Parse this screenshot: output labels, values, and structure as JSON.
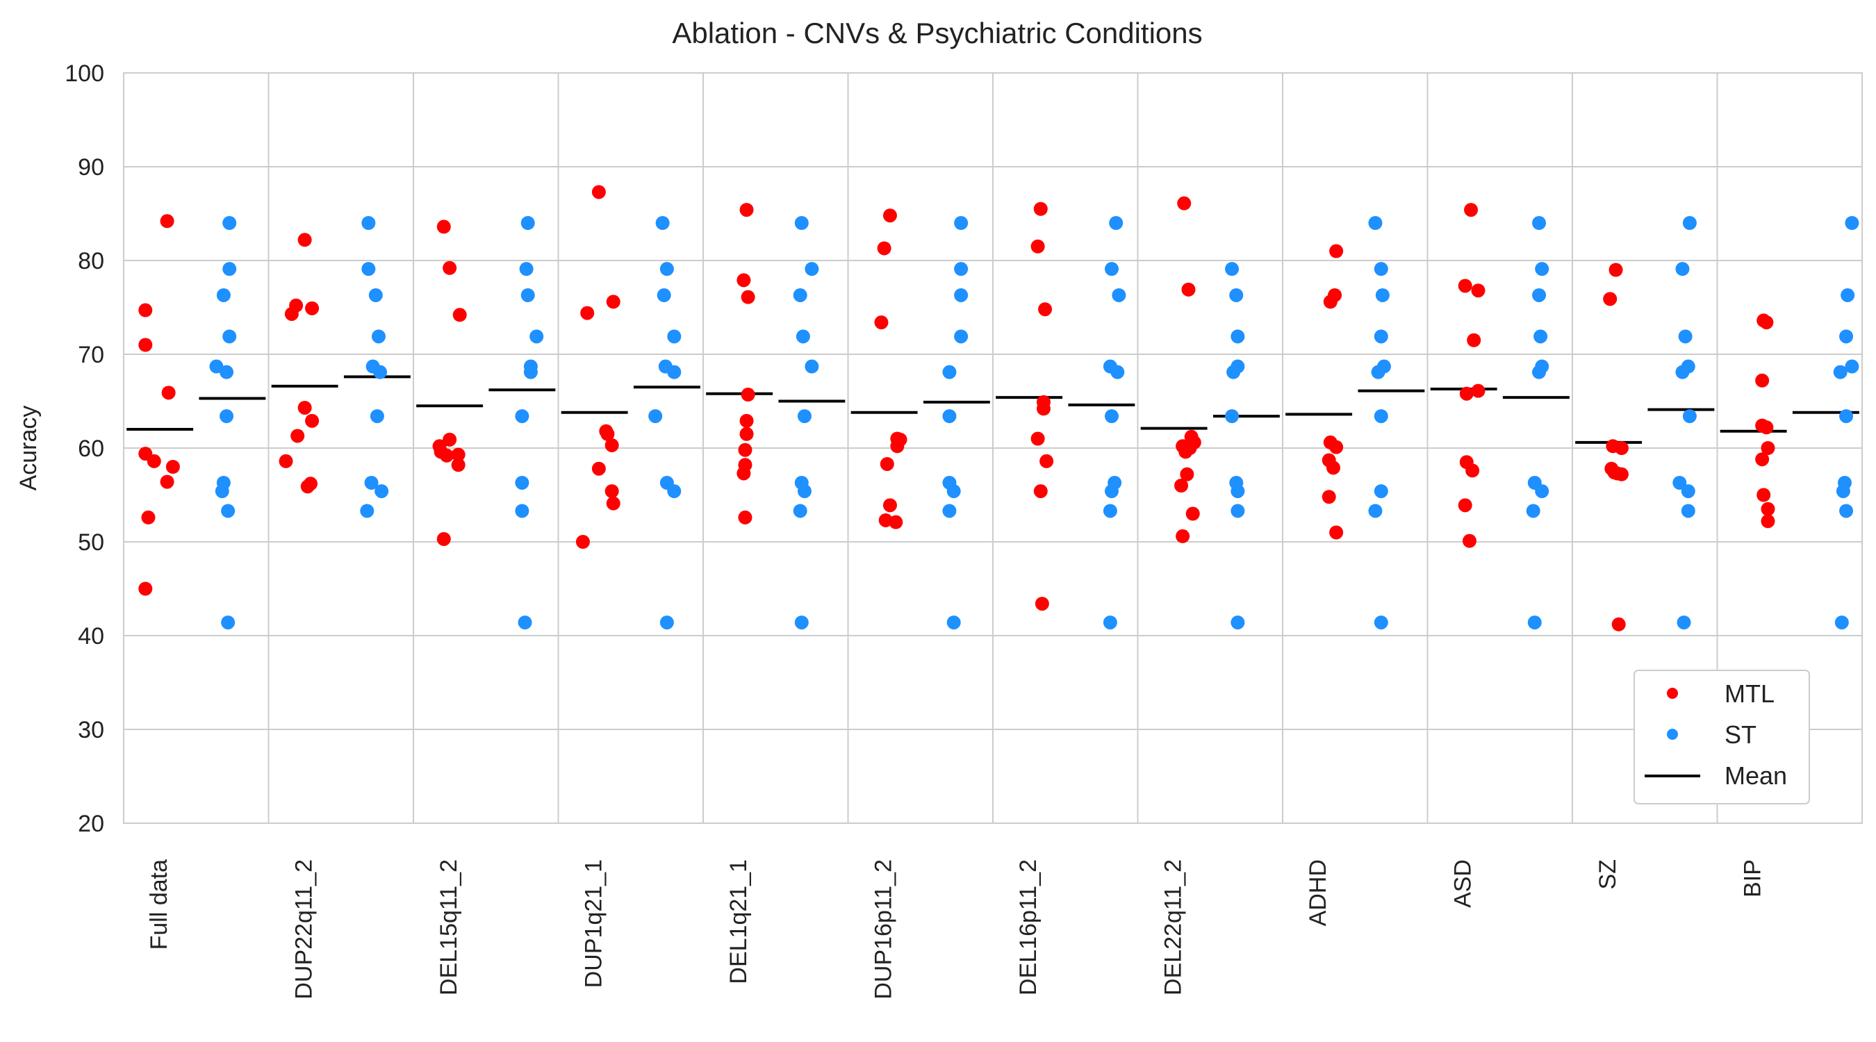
{
  "chart_data": {
    "type": "scatter",
    "title": "Ablation - CNVs & Psychiatric Conditions",
    "xlabel": "",
    "ylabel": "Acuracy",
    "ylim": [
      20,
      100
    ],
    "yticks": [
      20,
      30,
      40,
      50,
      60,
      70,
      80,
      90,
      100
    ],
    "grid": true,
    "legend_position": "bottom-right",
    "legend": [
      {
        "label": "MTL",
        "marker": "dot",
        "color": "#ff0000"
      },
      {
        "label": "ST",
        "marker": "dot",
        "color": "#1e90ff"
      },
      {
        "label": "Mean",
        "marker": "line",
        "color": "#000000"
      }
    ],
    "categories": [
      "Full data",
      "DUP22q11_2",
      "DEL15q11_2",
      "DUP1q21_1",
      "DEL1q21_1",
      "DUP16p11_2",
      "DEL16p11_2",
      "DEL22q11_2",
      "ADHD",
      "ASD",
      "SZ",
      "BIP"
    ],
    "series": [
      {
        "name": "MTL",
        "color": "#ff0000",
        "points": [
          [
            84.2,
            74.7,
            71.0,
            65.9,
            59.4,
            58.6,
            58.0,
            56.4,
            52.6,
            45.0
          ],
          [
            82.2,
            75.2,
            74.9,
            74.3,
            64.3,
            62.9,
            61.3,
            58.6,
            56.2,
            55.9
          ],
          [
            83.6,
            79.2,
            74.2,
            60.9,
            60.2,
            59.6,
            59.3,
            59.2,
            58.2,
            50.3
          ],
          [
            87.3,
            75.6,
            74.4,
            61.8,
            61.5,
            60.3,
            57.8,
            55.4,
            54.1,
            50.0
          ],
          [
            85.4,
            77.9,
            76.1,
            65.7,
            62.9,
            61.5,
            59.8,
            58.2,
            57.3,
            52.6
          ],
          [
            84.8,
            81.3,
            73.4,
            61.0,
            60.9,
            60.2,
            58.3,
            53.9,
            52.3,
            52.1
          ],
          [
            85.5,
            81.5,
            74.8,
            64.9,
            64.2,
            61.0,
            58.6,
            55.4,
            43.4
          ],
          [
            86.1,
            76.9,
            61.2,
            60.6,
            60.2,
            60.0,
            59.6,
            57.2,
            56.0,
            53.0,
            50.6
          ],
          [
            81.0,
            76.3,
            75.6,
            60.6,
            60.1,
            58.7,
            57.9,
            54.8,
            51.0
          ],
          [
            85.4,
            77.3,
            76.8,
            71.5,
            66.1,
            65.8,
            58.5,
            57.6,
            53.9,
            50.1
          ],
          [
            79.0,
            75.9,
            60.2,
            60.0,
            57.8,
            57.4,
            57.2,
            57.3,
            41.2
          ],
          [
            73.6,
            73.4,
            67.2,
            62.4,
            62.2,
            60.0,
            58.8,
            55.0,
            53.5,
            52.2
          ]
        ],
        "xoffsets": [
          [
            0.05,
            -0.1,
            -0.1,
            0.06,
            -0.1,
            -0.04,
            0.09,
            0.05,
            -0.08,
            -0.1
          ],
          [
            0.0,
            -0.06,
            0.05,
            -0.09,
            0.0,
            0.05,
            -0.05,
            -0.13,
            0.04,
            0.02
          ],
          [
            -0.04,
            0.0,
            0.07,
            0.0,
            -0.07,
            -0.06,
            0.06,
            -0.02,
            0.06,
            -0.04
          ],
          [
            0.03,
            0.13,
            -0.05,
            0.08,
            0.09,
            0.12,
            0.03,
            0.12,
            0.13,
            -0.08
          ],
          [
            0.05,
            0.03,
            0.06,
            0.06,
            0.05,
            0.05,
            0.04,
            0.04,
            0.03,
            0.04
          ],
          [
            0.04,
            0.0,
            -0.02,
            0.09,
            0.11,
            0.09,
            0.02,
            0.04,
            0.01,
            0.08
          ],
          [
            0.08,
            0.06,
            0.11,
            0.1,
            0.1,
            0.06,
            0.12,
            0.08,
            0.09
          ],
          [
            0.07,
            0.1,
            0.12,
            0.14,
            0.06,
            0.11,
            0.08,
            0.09,
            0.05,
            0.13,
            0.06
          ],
          [
            0.12,
            0.11,
            0.08,
            0.08,
            0.12,
            0.07,
            0.1,
            0.07,
            0.12
          ],
          [
            0.05,
            0.01,
            0.1,
            0.07,
            0.1,
            0.02,
            0.02,
            0.06,
            0.01,
            0.04
          ],
          [
            0.05,
            0.01,
            0.03,
            0.09,
            0.02,
            0.04,
            0.09,
            0.06,
            0.07
          ],
          [
            0.07,
            0.09,
            0.06,
            0.06,
            0.09,
            0.1,
            0.06,
            0.07,
            0.1,
            0.1
          ]
        ],
        "means": [
          62.0,
          66.6,
          64.5,
          63.8,
          65.8,
          63.8,
          65.4,
          62.1,
          63.6,
          66.3,
          60.6,
          61.8
        ]
      },
      {
        "name": "ST",
        "color": "#1e90ff",
        "points": [
          [
            84.0,
            79.1,
            76.3,
            71.9,
            68.7,
            68.1,
            63.4,
            56.3,
            55.4,
            53.3,
            41.4
          ],
          [
            84.0,
            79.1,
            76.3,
            71.9,
            68.7,
            68.1,
            63.4,
            56.3,
            55.4,
            53.3
          ],
          [
            84.0,
            79.1,
            76.3,
            71.9,
            68.7,
            68.1,
            63.4,
            56.3,
            53.3,
            41.4
          ],
          [
            84.0,
            79.1,
            76.3,
            71.9,
            68.7,
            68.1,
            63.4,
            56.3,
            55.4,
            41.4
          ],
          [
            84.0,
            79.1,
            76.3,
            71.9,
            68.7,
            63.4,
            56.3,
            55.4,
            53.3,
            41.4
          ],
          [
            84.0,
            79.1,
            76.3,
            71.9,
            68.1,
            63.4,
            56.3,
            55.4,
            53.3,
            41.4
          ],
          [
            84.0,
            79.1,
            76.3,
            68.7,
            68.1,
            63.4,
            56.3,
            55.4,
            53.3,
            41.4
          ],
          [
            79.1,
            76.3,
            71.9,
            68.7,
            68.1,
            63.4,
            56.3,
            55.4,
            53.3,
            41.4
          ],
          [
            84.0,
            79.1,
            76.3,
            71.9,
            68.7,
            68.1,
            63.4,
            55.4,
            53.3,
            41.4
          ],
          [
            84.0,
            79.1,
            76.3,
            71.9,
            68.7,
            68.1,
            56.3,
            55.4,
            53.3,
            41.4
          ],
          [
            84.0,
            79.1,
            71.9,
            68.7,
            68.1,
            63.4,
            56.3,
            55.4,
            53.3,
            41.4
          ],
          [
            84.0,
            76.3,
            71.9,
            68.7,
            68.1,
            63.4,
            56.3,
            55.4,
            53.3,
            41.4
          ]
        ],
        "xoffsets": [
          [
            -0.02,
            -0.02,
            -0.06,
            -0.02,
            -0.11,
            -0.04,
            -0.04,
            -0.06,
            -0.07,
            -0.03,
            -0.03
          ],
          [
            -0.06,
            -0.06,
            -0.01,
            0.01,
            -0.03,
            0.02,
            0.0,
            -0.04,
            0.03,
            -0.07
          ],
          [
            0.04,
            0.03,
            0.04,
            0.1,
            0.06,
            0.06,
            0.0,
            0.0,
            0.0,
            0.02
          ],
          [
            -0.03,
            0.0,
            -0.02,
            0.05,
            -0.01,
            0.05,
            -0.08,
            0.0,
            0.05,
            0.0
          ],
          [
            -0.07,
            0.0,
            -0.08,
            -0.06,
            0.0,
            -0.05,
            -0.07,
            -0.05,
            -0.08,
            -0.07
          ],
          [
            0.03,
            0.03,
            0.03,
            0.03,
            -0.05,
            -0.05,
            -0.05,
            -0.02,
            -0.05,
            -0.02
          ],
          [
            0.1,
            0.07,
            0.12,
            0.06,
            0.11,
            0.07,
            0.09,
            0.07,
            0.06,
            0.06
          ],
          [
            -0.1,
            -0.07,
            -0.06,
            -0.06,
            -0.09,
            -0.1,
            -0.07,
            -0.06,
            -0.06,
            -0.06
          ],
          [
            -0.11,
            -0.07,
            -0.06,
            -0.07,
            -0.05,
            -0.09,
            -0.07,
            -0.07,
            -0.11,
            -0.07
          ],
          [
            0.02,
            0.04,
            0.02,
            0.03,
            0.04,
            0.02,
            -0.01,
            0.04,
            -0.02,
            -0.01
          ],
          [
            0.06,
            0.01,
            0.03,
            0.05,
            0.01,
            0.06,
            -0.01,
            0.05,
            0.05,
            0.02
          ],
          [
            0.18,
            0.15,
            0.14,
            0.18,
            0.1,
            0.14,
            0.13,
            0.12,
            0.14,
            0.11
          ]
        ],
        "means": [
          65.3,
          67.6,
          66.2,
          66.5,
          65.0,
          64.9,
          64.6,
          63.4,
          66.1,
          65.4,
          64.1,
          63.8
        ]
      }
    ]
  }
}
